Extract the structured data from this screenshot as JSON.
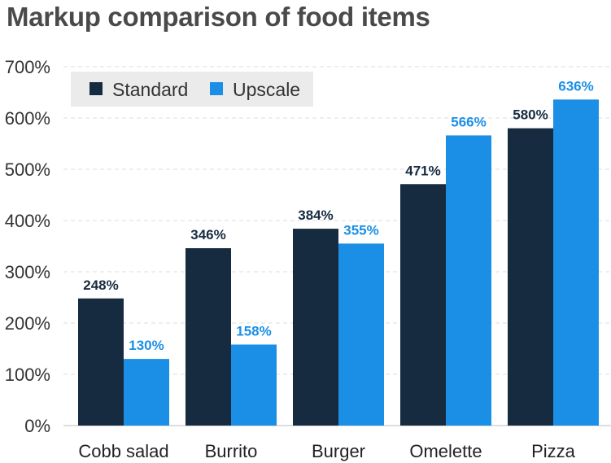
{
  "chart_data": {
    "type": "bar",
    "title": "Markup comparison of food items",
    "categories": [
      "Cobb salad",
      "Burrito",
      "Burger",
      "Omelette",
      "Pizza"
    ],
    "series": [
      {
        "name": "Standard",
        "values": [
          248,
          346,
          384,
          471,
          580
        ],
        "color": "#172b40",
        "label_color": "#172b40"
      },
      {
        "name": "Upscale",
        "values": [
          130,
          158,
          355,
          566,
          636
        ],
        "color": "#1b8fe6",
        "label_color": "#1b8fe6"
      }
    ],
    "value_suffix": "%",
    "ylim": [
      0,
      700
    ],
    "yticks": [
      0,
      100,
      200,
      300,
      400,
      500,
      600,
      700
    ],
    "xlabel": "",
    "ylabel": "",
    "grid": true,
    "legend": {
      "position": "top-left",
      "background": "#ebebeb"
    }
  }
}
